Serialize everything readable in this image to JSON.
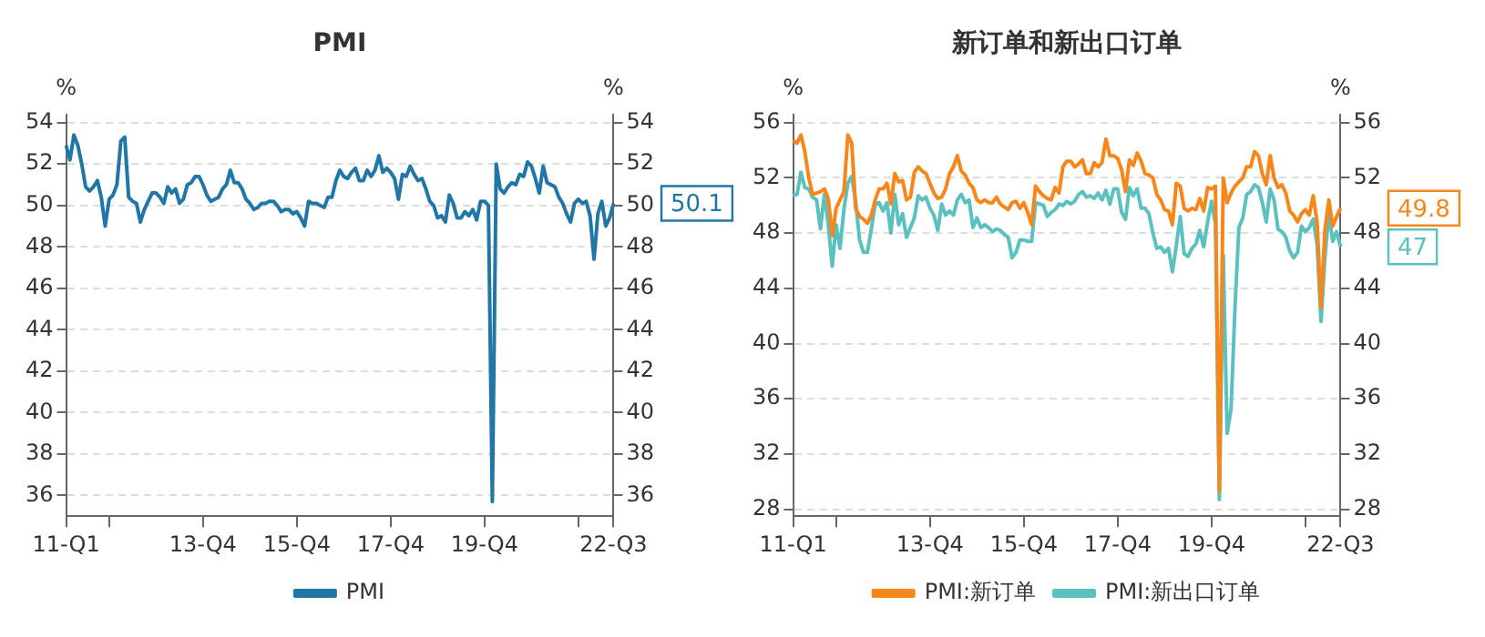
{
  "chart_data": [
    {
      "type": "line",
      "title": "PMI",
      "ylabel": "%",
      "y2label": "%",
      "categories": [
        "11-Q1",
        null,
        null,
        null,
        null,
        null,
        null,
        null,
        null,
        null,
        null,
        null,
        null,
        null,
        null,
        null,
        null,
        null,
        null,
        null,
        null,
        null,
        null,
        null,
        null,
        null,
        null,
        null,
        null,
        null,
        null,
        null,
        null,
        null,
        null,
        "13-Q4",
        null,
        null,
        null,
        null,
        null,
        null,
        null,
        null,
        null,
        null,
        null,
        null,
        null,
        null,
        null,
        null,
        null,
        null,
        null,
        null,
        null,
        null,
        null,
        "15-Q4",
        null,
        null,
        null,
        null,
        null,
        null,
        null,
        null,
        null,
        null,
        null,
        null,
        null,
        null,
        null,
        null,
        null,
        null,
        null,
        null,
        null,
        null,
        null,
        "17-Q4",
        null,
        null,
        null,
        null,
        null,
        null,
        null,
        null,
        null,
        null,
        null,
        null,
        null,
        null,
        null,
        null,
        null,
        null,
        null,
        null,
        null,
        null,
        null,
        "19-Q4",
        null,
        null,
        null,
        null,
        null,
        null,
        null,
        null,
        null,
        null,
        null,
        null,
        null,
        null,
        null,
        null,
        null,
        null,
        null,
        null,
        null,
        null,
        null,
        null,
        null,
        null,
        null,
        null,
        null,
        null,
        null,
        null,
        "22-Q3"
      ],
      "ylim": [
        35,
        54.4
      ],
      "yticks": [
        36,
        38,
        40,
        42,
        44,
        46,
        48,
        50,
        52,
        54
      ],
      "y2lim": [
        35,
        54.4
      ],
      "y2ticks": [
        36,
        38,
        40,
        42,
        44,
        46,
        48,
        50,
        52,
        54
      ],
      "grid": "y",
      "legend": "bottom",
      "annotations": [
        {
          "text": "50.1",
          "x": "22-Q3",
          "y": 50.1
        }
      ],
      "series": [
        {
          "name": "PMI",
          "color": "#2276a6",
          "values": [
            52.9,
            52.2,
            53.4,
            52.9,
            52.0,
            50.9,
            50.7,
            50.9,
            51.2,
            50.4,
            49.0,
            50.3,
            50.5,
            51.0,
            53.1,
            53.3,
            50.4,
            50.2,
            50.1,
            49.2,
            49.8,
            50.2,
            50.6,
            50.6,
            50.4,
            50.1,
            50.9,
            50.6,
            50.8,
            50.1,
            50.3,
            51.0,
            51.1,
            51.4,
            51.4,
            51.0,
            50.5,
            50.2,
            50.3,
            50.4,
            50.8,
            51.0,
            51.7,
            51.1,
            51.1,
            50.8,
            50.3,
            50.1,
            49.8,
            49.9,
            50.1,
            50.1,
            50.2,
            50.2,
            50.0,
            49.7,
            49.8,
            49.8,
            49.6,
            49.7,
            49.4,
            49.0,
            50.2,
            50.1,
            50.1,
            50.0,
            49.9,
            50.4,
            50.4,
            51.2,
            51.7,
            51.4,
            51.3,
            51.6,
            51.8,
            51.2,
            51.2,
            51.7,
            51.4,
            51.7,
            52.4,
            51.6,
            51.8,
            51.6,
            51.3,
            50.3,
            51.5,
            51.4,
            51.9,
            51.5,
            51.2,
            51.3,
            50.8,
            50.2,
            50.0,
            49.4,
            49.5,
            49.2,
            50.5,
            50.1,
            49.4,
            49.4,
            49.7,
            49.5,
            49.8,
            49.3,
            50.2,
            50.2,
            50.0,
            35.7,
            52.0,
            50.8,
            50.6,
            50.9,
            51.1,
            51.0,
            51.5,
            51.4,
            52.1,
            51.9,
            51.3,
            50.6,
            51.9,
            51.1,
            51.0,
            50.9,
            50.4,
            50.1,
            49.6,
            49.2,
            50.1,
            50.3,
            50.1,
            50.2,
            49.5,
            47.4,
            49.6,
            50.2,
            49.0,
            49.4,
            50.1
          ]
        }
      ]
    },
    {
      "type": "line",
      "title": "新订单和新出口订单",
      "ylabel": "%",
      "y2label": "%",
      "categories": [
        "11-Q1",
        null,
        null,
        null,
        null,
        null,
        null,
        null,
        null,
        null,
        null,
        null,
        null,
        null,
        null,
        null,
        null,
        null,
        null,
        null,
        null,
        null,
        null,
        null,
        null,
        null,
        null,
        null,
        null,
        null,
        null,
        null,
        null,
        null,
        null,
        "13-Q4",
        null,
        null,
        null,
        null,
        null,
        null,
        null,
        null,
        null,
        null,
        null,
        null,
        null,
        null,
        null,
        null,
        null,
        null,
        null,
        null,
        null,
        null,
        null,
        "15-Q4",
        null,
        null,
        null,
        null,
        null,
        null,
        null,
        null,
        null,
        null,
        null,
        null,
        null,
        null,
        null,
        null,
        null,
        null,
        null,
        null,
        null,
        null,
        null,
        "17-Q4",
        null,
        null,
        null,
        null,
        null,
        null,
        null,
        null,
        null,
        null,
        null,
        null,
        null,
        null,
        null,
        null,
        null,
        null,
        null,
        null,
        null,
        null,
        null,
        "19-Q4",
        null,
        null,
        null,
        null,
        null,
        null,
        null,
        null,
        null,
        null,
        null,
        null,
        null,
        null,
        null,
        null,
        null,
        null,
        null,
        null,
        null,
        null,
        null,
        null,
        null,
        null,
        null,
        null,
        null,
        null,
        null,
        null,
        "22-Q3"
      ],
      "ylim": [
        27.5,
        56.6
      ],
      "yticks": [
        28,
        32,
        36,
        40,
        44,
        48,
        52,
        56
      ],
      "y2lim": [
        27.5,
        56.6
      ],
      "y2ticks": [
        28,
        32,
        36,
        40,
        44,
        48,
        52,
        56
      ],
      "grid": "y",
      "legend": "bottom",
      "annotations": [
        {
          "text": "49.8",
          "x": "22-Q3",
          "y": 49.8
        },
        {
          "text": "47",
          "x": "22-Q3",
          "y": 47
        }
      ],
      "series": [
        {
          "name": "PMI:新订单",
          "color": "#f7861b",
          "values": [
            54.7,
            54.5,
            55.1,
            53.9,
            52.0,
            50.8,
            50.9,
            51.0,
            51.2,
            50.5,
            47.8,
            49.8,
            50.4,
            51.0,
            55.1,
            54.5,
            49.8,
            49.2,
            49.0,
            48.7,
            49.3,
            50.4,
            51.2,
            51.2,
            51.6,
            50.1,
            52.3,
            51.7,
            51.8,
            50.4,
            50.6,
            52.4,
            52.8,
            52.5,
            52.3,
            51.6,
            50.9,
            50.5,
            50.6,
            51.2,
            52.3,
            52.8,
            53.6,
            52.5,
            52.2,
            51.6,
            51.3,
            50.4,
            50.2,
            50.4,
            50.2,
            50.2,
            50.6,
            50.1,
            49.9,
            49.7,
            50.2,
            50.3,
            49.8,
            50.2,
            49.5,
            48.6,
            51.4,
            51.0,
            50.7,
            50.5,
            50.4,
            51.3,
            50.9,
            52.8,
            53.2,
            53.2,
            52.8,
            53.0,
            53.3,
            52.3,
            52.3,
            53.1,
            52.8,
            53.1,
            54.8,
            53.6,
            53.6,
            53.4,
            52.6,
            51.0,
            53.3,
            52.9,
            53.8,
            53.2,
            52.3,
            52.2,
            52.0,
            50.8,
            50.4,
            49.7,
            49.6,
            48.6,
            51.6,
            51.4,
            49.8,
            49.6,
            49.8,
            49.7,
            50.5,
            49.6,
            51.3,
            51.2,
            51.4,
            29.3,
            52.0,
            50.2,
            50.9,
            51.4,
            51.7,
            52.0,
            52.8,
            52.8,
            53.9,
            53.6,
            52.3,
            51.5,
            53.6,
            52.0,
            51.3,
            51.5,
            50.9,
            49.6,
            49.3,
            48.8,
            49.4,
            49.7,
            49.3,
            50.7,
            48.8,
            42.6,
            48.2,
            50.4,
            48.5,
            49.2,
            49.8
          ]
        },
        {
          "name": "PMI:新出口订单",
          "color": "#5bc0c0",
          "values": [
            50.7,
            50.8,
            52.4,
            51.3,
            51.2,
            50.6,
            50.4,
            48.3,
            50.8,
            48.6,
            45.6,
            48.6,
            46.9,
            49.7,
            51.6,
            52.1,
            50.3,
            47.5,
            46.6,
            46.6,
            48.3,
            50.1,
            50.2,
            49.6,
            50.2,
            48.0,
            50.8,
            48.6,
            49.4,
            47.7,
            48.4,
            49.1,
            50.7,
            50.4,
            50.6,
            49.8,
            49.3,
            48.2,
            50.1,
            49.3,
            49.6,
            49.3,
            50.4,
            50.8,
            50.2,
            50.4,
            48.4,
            49.1,
            48.4,
            48.6,
            48.4,
            48.1,
            48.3,
            48.2,
            47.9,
            47.7,
            46.2,
            46.6,
            47.5,
            47.5,
            47.4,
            47.4,
            50.2,
            50.1,
            50.0,
            49.2,
            49.5,
            49.7,
            50.1,
            50.0,
            50.3,
            50.1,
            50.3,
            50.8,
            51.0,
            50.6,
            50.7,
            50.5,
            50.9,
            50.4,
            51.1,
            50.1,
            51.2,
            51.2,
            49.5,
            49.0,
            51.3,
            50.7,
            51.2,
            49.8,
            49.8,
            49.4,
            48.0,
            46.9,
            47.0,
            46.6,
            46.9,
            45.2,
            47.1,
            49.2,
            46.5,
            46.3,
            46.9,
            47.2,
            48.2,
            47.0,
            48.8,
            50.3,
            48.7,
            28.7,
            46.4,
            33.5,
            35.3,
            42.6,
            48.4,
            49.1,
            50.8,
            51.0,
            51.5,
            51.3,
            50.2,
            48.8,
            51.2,
            50.4,
            48.3,
            48.1,
            47.7,
            46.7,
            46.2,
            46.6,
            48.5,
            48.1,
            48.4,
            49.0,
            47.2,
            41.6,
            46.2,
            49.5,
            47.4,
            48.1,
            47.0
          ]
        }
      ]
    }
  ]
}
